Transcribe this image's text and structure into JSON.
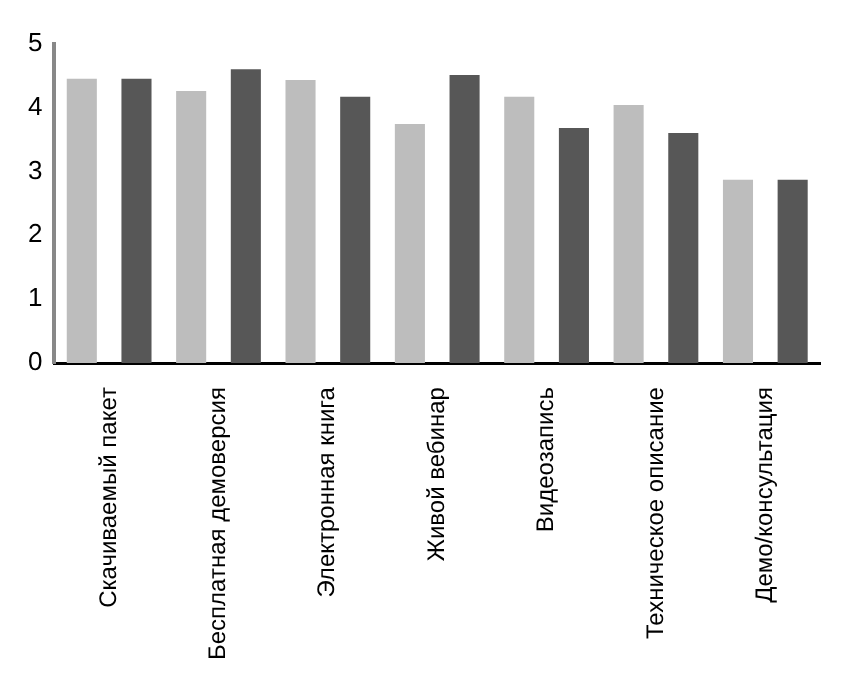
{
  "chart_data": {
    "type": "bar",
    "categories": [
      "Скачиваемый пакет",
      "Бесплатная демоверсия",
      "Электронная книга",
      "Живой вебинар",
      "Видеозапись",
      "Техническое описание",
      "Демо/консультация"
    ],
    "series": [
      {
        "color": "#bdbdbd",
        "values": [
          4.45,
          4.26,
          4.43,
          3.74,
          4.17,
          4.04,
          2.87
        ]
      },
      {
        "color": "#575757",
        "values": [
          4.45,
          4.6,
          4.17,
          4.51,
          3.68,
          3.6,
          2.87
        ]
      }
    ],
    "ylim": [
      0,
      5
    ],
    "yticks": [
      0,
      1,
      2,
      3,
      4,
      5
    ],
    "grid": false,
    "legend": false
  }
}
